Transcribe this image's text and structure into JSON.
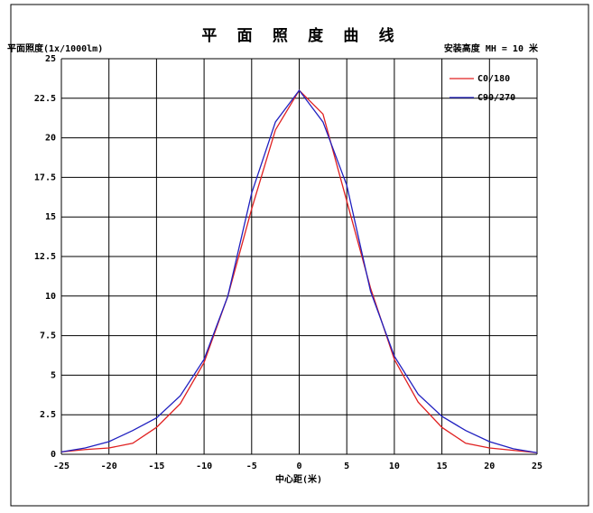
{
  "chart_data": {
    "type": "line",
    "title": "平 面 照 度 曲 线",
    "y_label": "平面照度(1x/1000lm)",
    "subtitle": "安装高度 MH = 10 米",
    "x_label": "中心距(米)",
    "x": [
      -25,
      -22.5,
      -20,
      -17.5,
      -15,
      -12.5,
      -10,
      -7.5,
      -5,
      -2.5,
      0,
      2.5,
      5,
      7.5,
      10,
      12.5,
      15,
      17.5,
      20,
      22.5,
      25
    ],
    "series": [
      {
        "name": "C0/180",
        "color": "#e02020",
        "values": [
          0.15,
          0.3,
          0.4,
          0.7,
          1.7,
          3.2,
          5.8,
          10,
          15.5,
          20.5,
          23,
          21.5,
          16,
          10.5,
          6,
          3.3,
          1.7,
          0.7,
          0.4,
          0.25,
          0.1
        ]
      },
      {
        "name": "C90/270",
        "color": "#2020c0",
        "values": [
          0.15,
          0.4,
          0.8,
          1.5,
          2.3,
          3.7,
          6,
          10,
          16.5,
          21,
          23,
          21,
          17,
          10.3,
          6.2,
          3.8,
          2.4,
          1.5,
          0.8,
          0.35,
          0.1
        ]
      }
    ],
    "xlim": [
      -25,
      25
    ],
    "xticks": [
      -25,
      -20,
      -15,
      -10,
      -5,
      0,
      5,
      10,
      15,
      20,
      25
    ],
    "ylim": [
      0,
      25
    ],
    "yticks": [
      0,
      2.5,
      5,
      7.5,
      10,
      12.5,
      15,
      17.5,
      20,
      22.5,
      25
    ],
    "grid": true
  }
}
